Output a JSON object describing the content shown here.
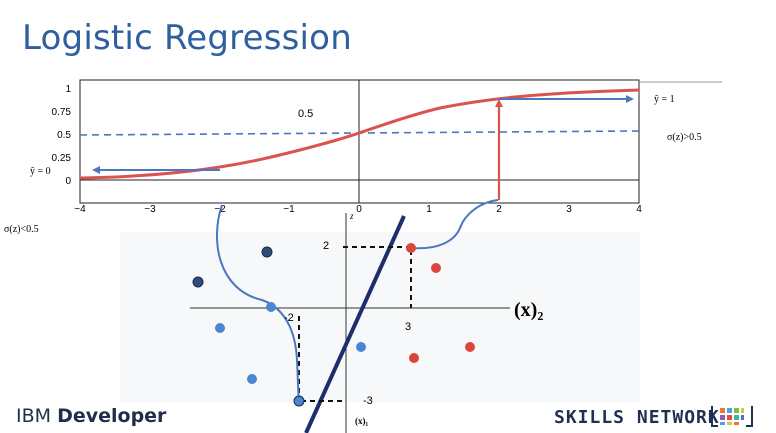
{
  "title": "Logistic Regression",
  "top_plot": {
    "x_ticks": [
      "−4",
      "−3",
      "−2",
      "−1",
      "0",
      "1",
      "2",
      "3",
      "4"
    ],
    "y_ticks": [
      "0",
      "0.25",
      "0.5",
      "0.75",
      "1"
    ],
    "label_center": "0.5",
    "label_yhat1": "ŷ = 1",
    "label_yhat0": "ŷ = 0",
    "label_gt": "σ(z)>0.5",
    "label_lt": "σ(z)<0.5",
    "colors": {
      "curve": "#d9534f",
      "threshold": "#4a78c0",
      "arrow": "#4a78c0",
      "red_arrow": "#d9534f"
    }
  },
  "bottom_plot": {
    "z_axis_label": "z",
    "x2_label": "(x)₂",
    "x1_label": "(x)₁",
    "tick_2": "2",
    "tick_3": "3",
    "tick_neg2": "-2",
    "tick_neg3": "-3",
    "colors": {
      "red_point": "#d9473b",
      "blue_point": "#4a86d4",
      "dark_point": "#2c4f7a",
      "line": "#1d2e6b"
    }
  },
  "footer": {
    "brand_left_a": "IBM",
    "brand_left_b": "Developer",
    "brand_right": "SKILLS NETWORK"
  }
}
